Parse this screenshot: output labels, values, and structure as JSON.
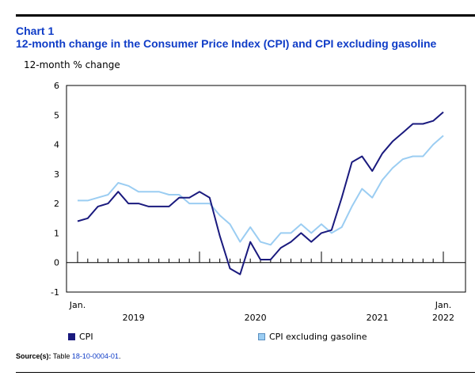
{
  "header": {
    "chart_number": "Chart 1",
    "title": "12-month change in the Consumer Price Index (CPI) and CPI excluding gasoline"
  },
  "footer": {
    "source_label": "Source(s):",
    "source_text": "Table",
    "source_link": "18-10-0004-01",
    "source_end": "."
  },
  "chart_data": {
    "type": "line",
    "ylabel": "12-month % change",
    "ylim": [
      -1,
      6
    ],
    "yticks": [
      "-1",
      "0",
      "1",
      "2",
      "3",
      "4",
      "5",
      "6"
    ],
    "x_start_label": "Jan.",
    "x_end_label": "Jan.",
    "year_labels": [
      "2019",
      "2020",
      "2021",
      "2022"
    ],
    "x": [
      "2019-01",
      "2019-02",
      "2019-03",
      "2019-04",
      "2019-05",
      "2019-06",
      "2019-07",
      "2019-08",
      "2019-09",
      "2019-10",
      "2019-11",
      "2019-12",
      "2020-01",
      "2020-02",
      "2020-03",
      "2020-04",
      "2020-05",
      "2020-06",
      "2020-07",
      "2020-08",
      "2020-09",
      "2020-10",
      "2020-11",
      "2020-12",
      "2021-01",
      "2021-02",
      "2021-03",
      "2021-04",
      "2021-05",
      "2021-06",
      "2021-07",
      "2021-08",
      "2021-09",
      "2021-10",
      "2021-11",
      "2021-12",
      "2022-01"
    ],
    "series": [
      {
        "name": "CPI",
        "color": "#1a1a7e",
        "values": [
          1.4,
          1.5,
          1.9,
          2.0,
          2.4,
          2.0,
          2.0,
          1.9,
          1.9,
          1.9,
          2.2,
          2.2,
          2.4,
          2.2,
          0.9,
          -0.2,
          -0.4,
          0.7,
          0.1,
          0.1,
          0.5,
          0.7,
          1.0,
          0.7,
          1.0,
          1.1,
          2.2,
          3.4,
          3.6,
          3.1,
          3.7,
          4.1,
          4.4,
          4.7,
          4.7,
          4.8,
          5.1
        ]
      },
      {
        "name": "CPI excluding gasoline",
        "color": "#9bcdf2",
        "values": [
          2.1,
          2.1,
          2.2,
          2.3,
          2.7,
          2.6,
          2.4,
          2.4,
          2.4,
          2.3,
          2.3,
          2.0,
          2.0,
          2.0,
          1.6,
          1.3,
          0.7,
          1.2,
          0.7,
          0.6,
          1.0,
          1.0,
          1.3,
          1.0,
          1.3,
          1.0,
          1.2,
          1.9,
          2.5,
          2.2,
          2.8,
          3.2,
          3.5,
          3.6,
          3.6,
          4.0,
          4.3
        ]
      }
    ],
    "grid": false,
    "legend": "bottom"
  }
}
